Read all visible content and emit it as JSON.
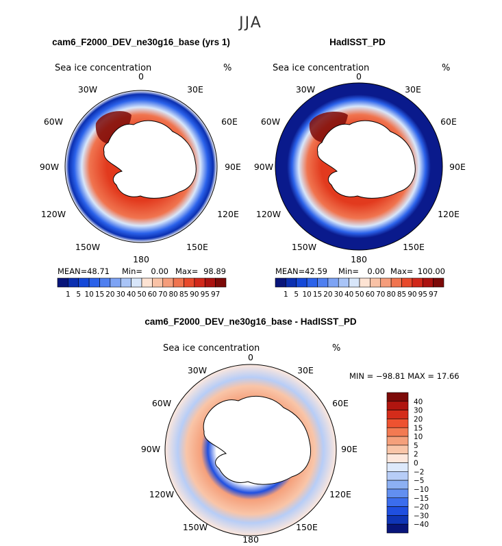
{
  "season": "JJA",
  "panels": [
    {
      "title": "cam6_F2000_DEV_ne30g16_base (yrs 1)",
      "variable": "Sea ice concentration",
      "units": "%",
      "stats": {
        "mean_label": "MEAN=",
        "mean": "48.71",
        "min_label": "Min=",
        "min": "0.00",
        "max_label": "Max=",
        "max": "98.89"
      },
      "ocean_fill": "#ffffff"
    },
    {
      "title": "HadISST_PD",
      "variable": "Sea ice concentration",
      "units": "%",
      "stats": {
        "mean_label": "MEAN=",
        "mean": "42.59",
        "min_label": "Min=",
        "min": "0.00",
        "max_label": "Max=",
        "max": "100.00"
      },
      "ocean_fill": "#0a1a8c"
    }
  ],
  "diff_panel": {
    "title": "cam6_F2000_DEV_ne30g16_base - HadISST_PD",
    "variable": "Sea ice concentration",
    "units": "%",
    "stats_text": "MIN = −98.81  MAX =  17.66"
  },
  "lon_labels": [
    "0",
    "30E",
    "60E",
    "90E",
    "120E",
    "150E",
    "180",
    "150W",
    "120W",
    "90W",
    "60W",
    "30W"
  ],
  "abs_colorbar": {
    "levels": [
      "1",
      "5",
      "10",
      "15",
      "20",
      "30",
      "40",
      "50",
      "60",
      "70",
      "80",
      "85",
      "90",
      "95",
      "97"
    ],
    "colors": [
      "#08157a",
      "#0a2fb0",
      "#1448d8",
      "#2b62ea",
      "#4f7ff0",
      "#7da3f4",
      "#a9c4f7",
      "#d8e6fa",
      "#fde3d3",
      "#f9c2a6",
      "#f59d7b",
      "#f0744f",
      "#e84a2c",
      "#d1281a",
      "#ab120f",
      "#7c0a08"
    ]
  },
  "diff_colorbar": {
    "levels": [
      "40",
      "30",
      "20",
      "15",
      "10",
      "5",
      "2",
      "0",
      "−2",
      "−5",
      "−10",
      "−15",
      "−20",
      "−30",
      "−40"
    ],
    "colors": [
      "#7c0a08",
      "#b0150f",
      "#d42c1a",
      "#ee5230",
      "#f37a52",
      "#f5a07b",
      "#f9c5a8",
      "#fde7dc",
      "#dde9fb",
      "#b7cdf7",
      "#8cb0f3",
      "#628ff0",
      "#3b6ded",
      "#1f4fe0",
      "#0f35b6",
      "#08157a"
    ]
  }
}
